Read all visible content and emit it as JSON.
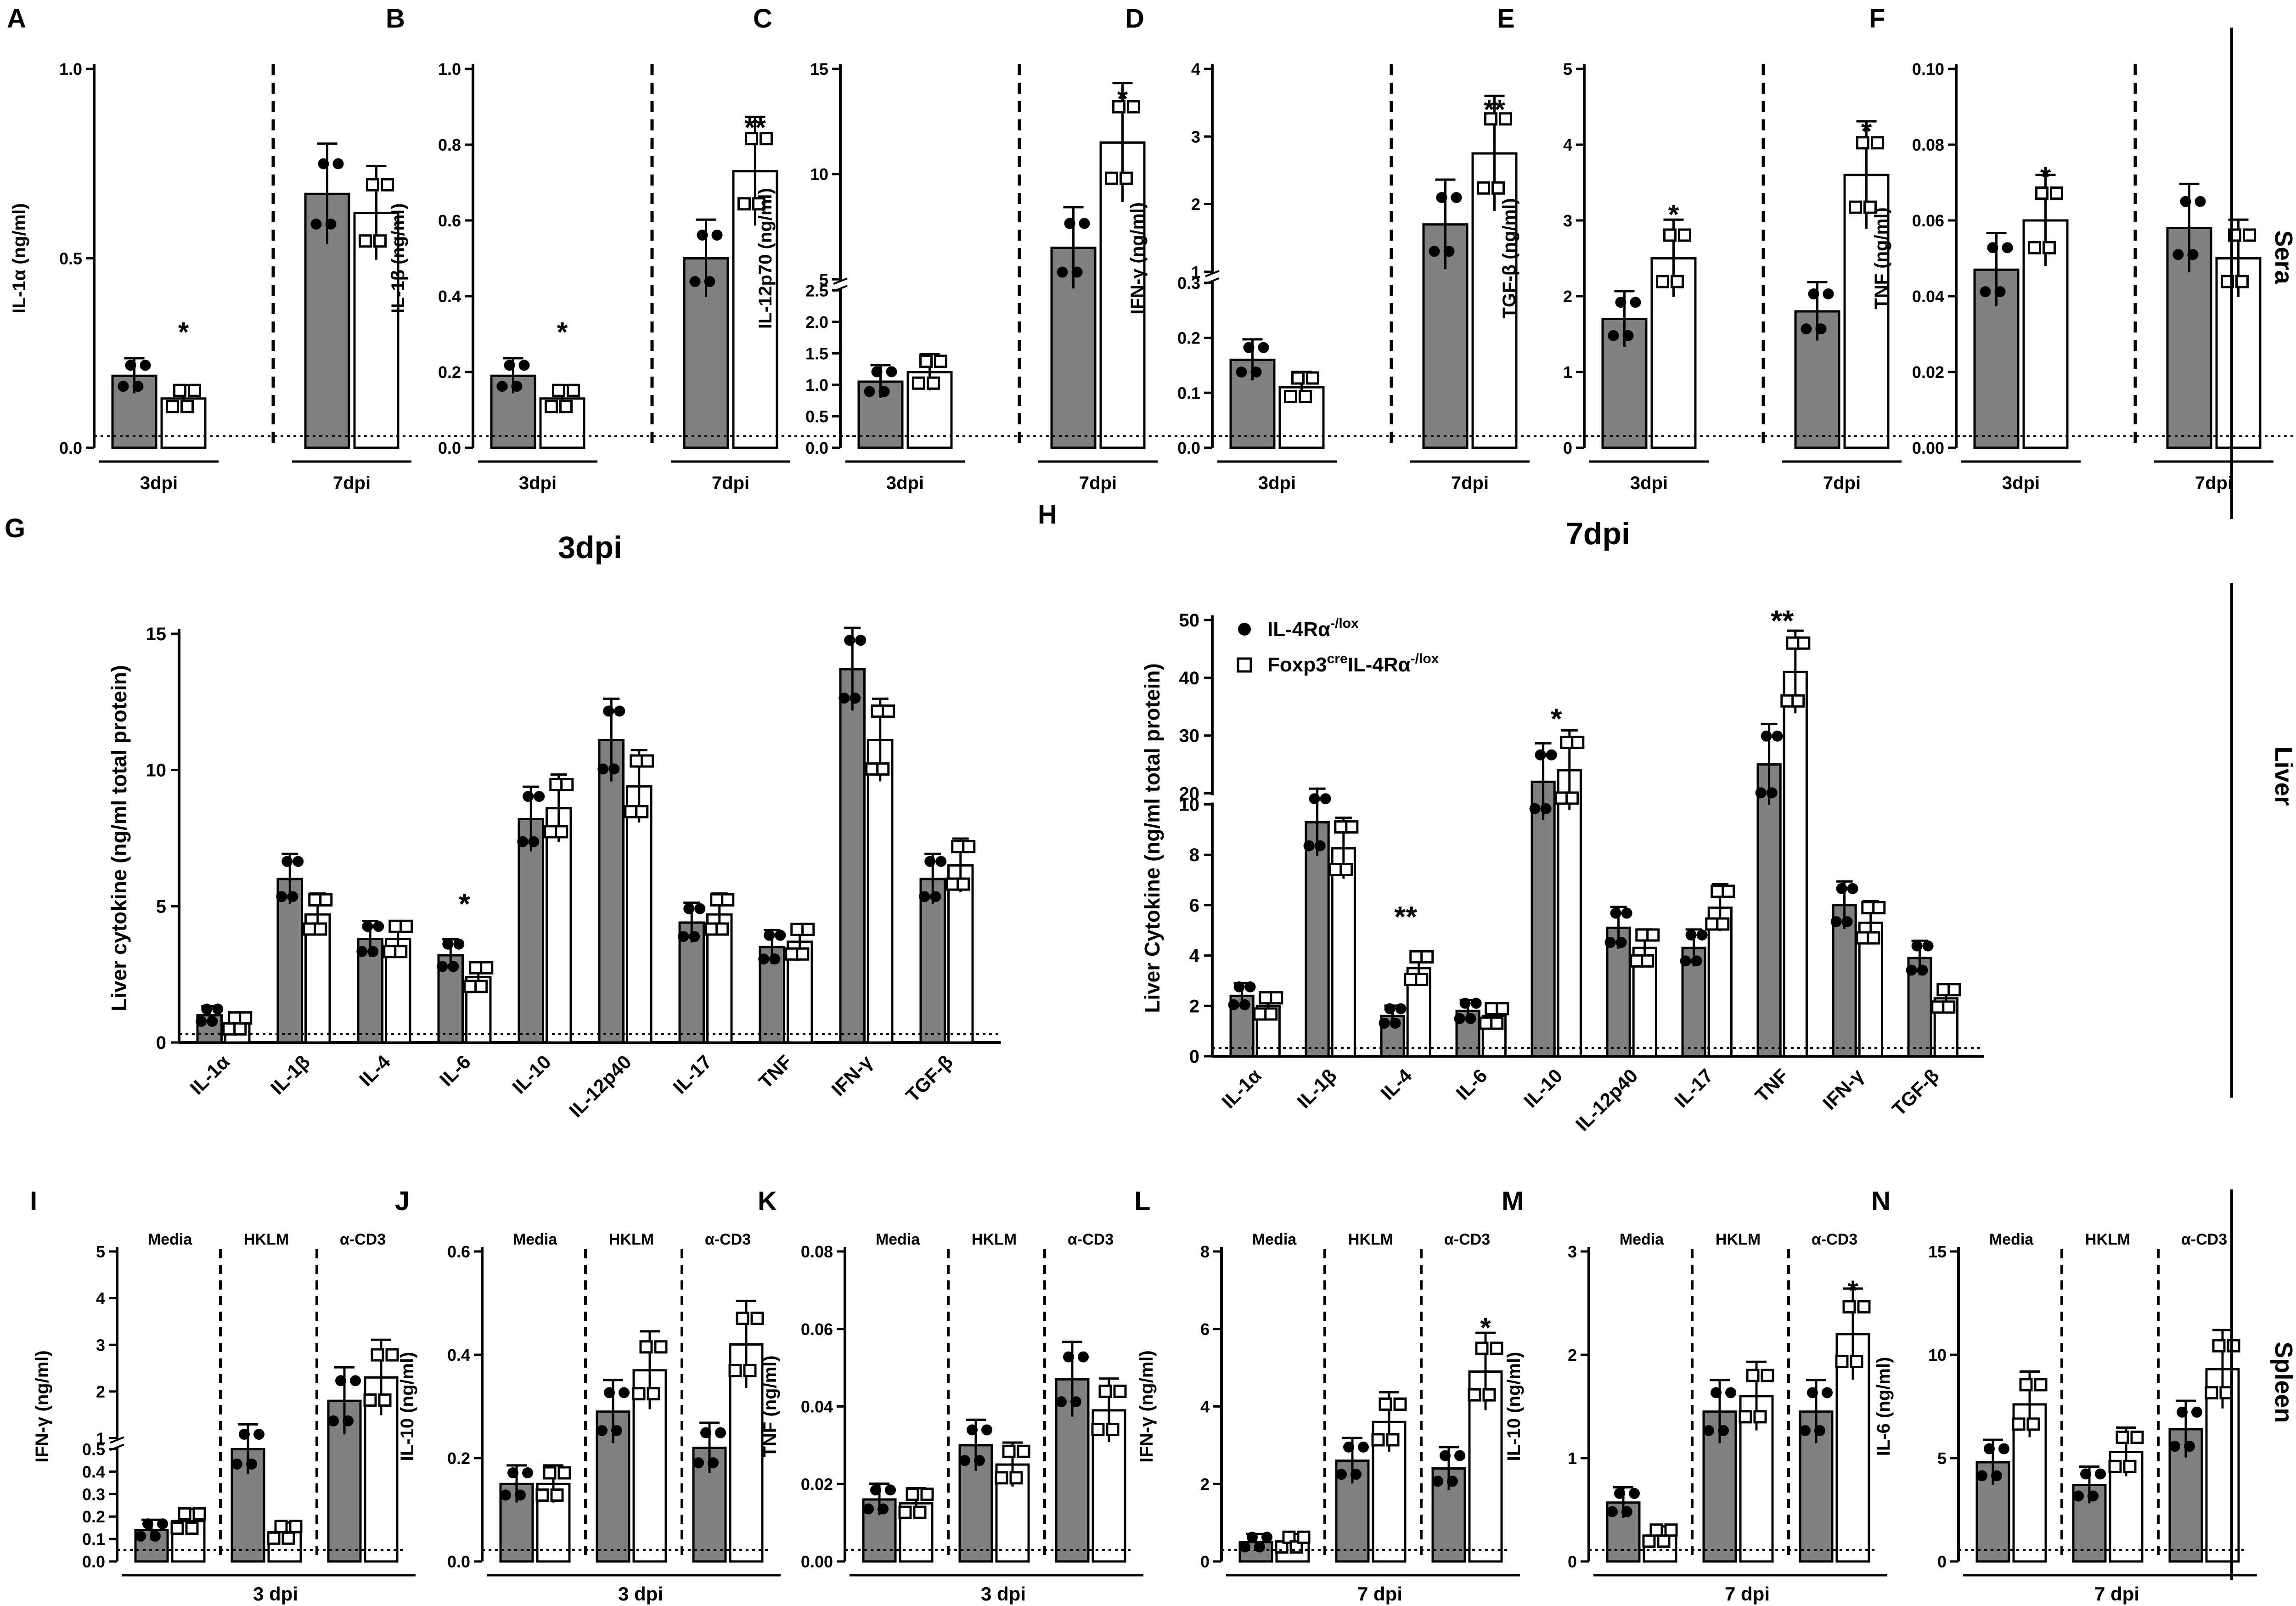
{
  "figure": {
    "legend": {
      "series1": "IL-4Rα",
      "series1_sup": "-/lox",
      "series2_pre": "Foxp3",
      "series2_sup1": "cre",
      "series2_mid": "IL-4Rα",
      "series2_sup2": "-/lox"
    },
    "colors": {
      "filled_bar": "#808080",
      "open_bar": "#ffffff",
      "ink": "#000000"
    }
  },
  "chart_data": [
    {
      "type": "bar",
      "panel": "A",
      "ylabel": "IL-1α (ng/ml)",
      "ylim": [
        0,
        1.0
      ],
      "yticks": [
        "0.0",
        "0.5",
        "1.0"
      ],
      "groups": [
        "3dpi",
        "7dpi"
      ],
      "series": [
        {
          "name": "IL-4Rα-/lox",
          "values": [
            0.19,
            0.67
          ]
        },
        {
          "name": "Foxp3creIL-4Rα-/lox",
          "values": [
            0.13,
            0.62
          ]
        }
      ],
      "stars": [
        "*",
        ""
      ],
      "sera_label": "Sera"
    },
    {
      "type": "bar",
      "panel": "B",
      "ylabel": "IL-1β (ng/ml)",
      "ylim": [
        0,
        1.0
      ],
      "yticks": [
        "0.0",
        "0.2",
        "0.4",
        "0.6",
        "0.8",
        "1.0"
      ],
      "groups": [
        "3dpi",
        "7dpi"
      ],
      "series": [
        {
          "name": "IL-4Rα-/lox",
          "values": [
            0.19,
            0.5
          ]
        },
        {
          "name": "Foxp3creIL-4Rα-/lox",
          "values": [
            0.13,
            0.73
          ]
        }
      ],
      "stars": [
        "*",
        "**"
      ]
    },
    {
      "type": "bar",
      "panel": "C",
      "ylabel": "IL-12p70 (ng/ml)",
      "ylim": [
        0,
        15
      ],
      "yticks": [
        "0.0",
        "0.5",
        "1.0",
        "1.5",
        "2.0",
        "2.5",
        "5",
        "10",
        "15"
      ],
      "groups": [
        "3dpi",
        "7dpi"
      ],
      "series": [
        {
          "name": "IL-4Rα-/lox",
          "values": [
            1.05,
            6.5
          ]
        },
        {
          "name": "Foxp3creIL-4Rα-/lox",
          "values": [
            1.2,
            11.5
          ]
        }
      ],
      "stars": [
        "",
        "*"
      ]
    },
    {
      "type": "bar",
      "panel": "D",
      "ylabel": "IFN-γ (ng/ml)",
      "ylim": [
        0,
        4
      ],
      "yticks": [
        "0.0",
        "0.1",
        "0.2",
        "0.3",
        "1",
        "2",
        "3",
        "4"
      ],
      "groups": [
        "3dpi",
        "7dpi"
      ],
      "series": [
        {
          "name": "IL-4Rα-/lox",
          "values": [
            0.16,
            1.7
          ]
        },
        {
          "name": "Foxp3creIL-4Rα-/lox",
          "values": [
            0.11,
            2.75
          ]
        }
      ],
      "stars": [
        "",
        "**"
      ]
    },
    {
      "type": "bar",
      "panel": "E",
      "ylabel": "TGF-β (ng/ml)",
      "ylim": [
        0,
        5
      ],
      "yticks": [
        "0",
        "1",
        "2",
        "3",
        "4",
        "5"
      ],
      "groups": [
        "3dpi",
        "7dpi"
      ],
      "series": [
        {
          "name": "IL-4Rα-/lox",
          "values": [
            1.7,
            1.8
          ]
        },
        {
          "name": "Foxp3creIL-4Rα-/lox",
          "values": [
            2.5,
            3.6
          ]
        }
      ],
      "stars": [
        "*",
        "*"
      ]
    },
    {
      "type": "bar",
      "panel": "F",
      "ylabel": "TNF (ng/ml)",
      "ylim": [
        0,
        0.1
      ],
      "yticks": [
        "0.00",
        "0.02",
        "0.04",
        "0.06",
        "0.08",
        "0.10"
      ],
      "groups": [
        "3dpi",
        "7dpi"
      ],
      "series": [
        {
          "name": "IL-4Rα-/lox",
          "values": [
            0.047,
            0.058
          ]
        },
        {
          "name": "Foxp3creIL-4Rα-/lox",
          "values": [
            0.06,
            0.05
          ]
        }
      ],
      "stars": [
        "*",
        ""
      ]
    },
    {
      "type": "bar",
      "panel": "G",
      "title": "3dpi",
      "ylabel": "Liver cytokine (ng/ml total protein)",
      "ylim": [
        0,
        15
      ],
      "yticks": [
        "0",
        "5",
        "10",
        "15"
      ],
      "categories": [
        "IL-1α",
        "IL-1β",
        "IL-4",
        "IL-6",
        "IL-10",
        "IL-12p40",
        "IL-17",
        "TNF",
        "IFN-γ",
        "TGF-β"
      ],
      "series": [
        {
          "name": "IL-4Rα-/lox",
          "values": [
            1.0,
            6.0,
            3.8,
            3.2,
            8.2,
            11.1,
            4.4,
            3.5,
            13.7,
            6.0
          ]
        },
        {
          "name": "Foxp3creIL-4Rα-/lox",
          "values": [
            0.7,
            4.7,
            3.8,
            2.4,
            8.6,
            9.4,
            4.7,
            3.7,
            11.1,
            6.5
          ]
        }
      ],
      "stars": [
        "",
        "",
        "",
        "*",
        "",
        "",
        "",
        "",
        "",
        ""
      ],
      "section_label": "Liver"
    },
    {
      "type": "bar",
      "panel": "H",
      "title": "7dpi",
      "ylabel": "Liver Cytokine (ng/ml total protein)",
      "ylim": [
        0,
        50
      ],
      "yticks": [
        "0",
        "2",
        "4",
        "6",
        "8",
        "10",
        "20",
        "30",
        "40",
        "50"
      ],
      "categories": [
        "IL-1α",
        "IL-1β",
        "IL-4",
        "IL-6",
        "IL-10",
        "IL-12p40",
        "IL-17",
        "TNF",
        "IFN-γ",
        "TGF-β"
      ],
      "series": [
        {
          "name": "IL-4Rα-/lox",
          "values": [
            2.4,
            15,
            1.6,
            1.8,
            22,
            5.1,
            4.3,
            25,
            6.0,
            3.9
          ]
        },
        {
          "name": "Foxp3creIL-4Rα-/lox",
          "values": [
            2.0,
            10.5,
            3.5,
            1.6,
            24,
            4.3,
            5.9,
            41,
            5.3,
            2.3
          ]
        }
      ],
      "stars": [
        "",
        "",
        "**",
        "",
        "*",
        "",
        "",
        "**",
        "",
        ""
      ]
    },
    {
      "type": "bar",
      "panel": "I",
      "ylabel": "IFN-γ (ng/ml)",
      "ylim": [
        0,
        5
      ],
      "yticks": [
        "0.0",
        "0.1",
        "0.2",
        "0.3",
        "0.4",
        "0.5",
        "1",
        "2",
        "3",
        "4",
        "5"
      ],
      "groups": [
        "Media",
        "HKLM",
        "α-CD3"
      ],
      "series": [
        {
          "name": "IL-4Rα-/lox",
          "values": [
            0.14,
            0.5,
            1.8
          ]
        },
        {
          "name": "Foxp3creIL-4Rα-/lox",
          "values": [
            0.18,
            0.13,
            2.3
          ]
        }
      ],
      "stars": [
        "",
        "",
        ""
      ],
      "xlabel": "3 dpi",
      "section_label": "Spleen"
    },
    {
      "type": "bar",
      "panel": "J",
      "ylabel": "IL-10 (ng/ml)",
      "ylim": [
        0,
        0.6
      ],
      "yticks": [
        "0.0",
        "0.2",
        "0.4",
        "0.6"
      ],
      "groups": [
        "Media",
        "HKLM",
        "α-CD3"
      ],
      "series": [
        {
          "name": "IL-4Rα-/lox",
          "values": [
            0.15,
            0.29,
            0.22
          ]
        },
        {
          "name": "Foxp3creIL-4Rα-/lox",
          "values": [
            0.15,
            0.37,
            0.42
          ]
        }
      ],
      "stars": [
        "",
        "",
        ""
      ],
      "xlabel": "3 dpi"
    },
    {
      "type": "bar",
      "panel": "K",
      "ylabel": "TNF (ng/ml)",
      "ylim": [
        0,
        0.08
      ],
      "yticks": [
        "0.00",
        "0.02",
        "0.04",
        "0.06",
        "0.08"
      ],
      "groups": [
        "Media",
        "HKLM",
        "α-CD3"
      ],
      "series": [
        {
          "name": "IL-4Rα-/lox",
          "values": [
            0.016,
            0.03,
            0.047
          ]
        },
        {
          "name": "Foxp3creIL-4Rα-/lox",
          "values": [
            0.015,
            0.025,
            0.039
          ]
        }
      ],
      "stars": [
        "",
        "",
        ""
      ],
      "xlabel": "3 dpi"
    },
    {
      "type": "bar",
      "panel": "L",
      "ylabel": "IFN-γ (ng/ml)",
      "ylim": [
        0,
        8
      ],
      "yticks": [
        "0",
        "2",
        "4",
        "6",
        "8"
      ],
      "groups": [
        "Media",
        "HKLM",
        "α-CD3"
      ],
      "series": [
        {
          "name": "IL-4Rα-/lox",
          "values": [
            0.5,
            2.6,
            2.4
          ]
        },
        {
          "name": "Foxp3creIL-4Rα-/lox",
          "values": [
            0.5,
            3.6,
            4.9
          ]
        }
      ],
      "stars": [
        "",
        "",
        "*"
      ],
      "xlabel": "7 dpi"
    },
    {
      "type": "bar",
      "panel": "M",
      "ylabel": "IL-10 (ng/ml)",
      "ylim": [
        0,
        3
      ],
      "yticks": [
        "0",
        "1",
        "2",
        "3"
      ],
      "groups": [
        "Media",
        "HKLM",
        "α-CD3"
      ],
      "series": [
        {
          "name": "IL-4Rα-/lox",
          "values": [
            0.57,
            1.45,
            1.45
          ]
        },
        {
          "name": "Foxp3creIL-4Rα-/lox",
          "values": [
            0.25,
            1.6,
            2.2
          ]
        }
      ],
      "stars": [
        "",
        "",
        "*"
      ],
      "xlabel": "7 dpi"
    },
    {
      "type": "bar",
      "panel": "N",
      "ylabel": "IL-6 (ng/ml)",
      "ylim": [
        0,
        15
      ],
      "yticks": [
        "0",
        "5",
        "10",
        "15"
      ],
      "groups": [
        "Media",
        "HKLM",
        "α-CD3"
      ],
      "series": [
        {
          "name": "IL-4Rα-/lox",
          "values": [
            4.8,
            3.7,
            6.4
          ]
        },
        {
          "name": "Foxp3creIL-4Rα-/lox",
          "values": [
            7.6,
            5.3,
            9.3
          ]
        }
      ],
      "stars": [
        "",
        "",
        ""
      ],
      "xlabel": "7 dpi"
    }
  ]
}
